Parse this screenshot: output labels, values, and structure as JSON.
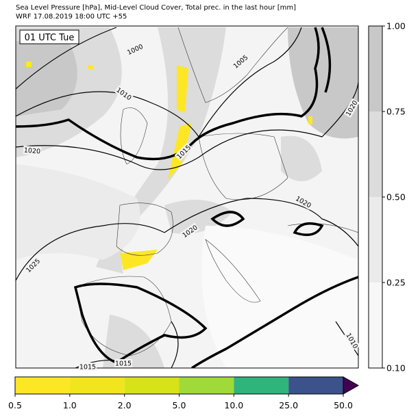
{
  "header": {
    "title": "Sea Level Pressure [hPa], Mid-Level Cloud Cover, Total prec. in the last hour [mm]",
    "subtitle": "WRF 17.08.2019 18:00 UTC +55"
  },
  "map": {
    "time_label": "01 UTC Tue",
    "contour_labels": [
      "1000",
      "1005",
      "1010",
      "1015",
      "1020",
      "1020",
      "1020",
      "1020",
      "1025",
      "1015",
      "1015",
      "1010"
    ]
  },
  "cloud_colorbar": {
    "ticks": [
      {
        "value": 0.1,
        "label": "0.10"
      },
      {
        "value": 0.25,
        "label": "0.25"
      },
      {
        "value": 0.5,
        "label": "0.50"
      },
      {
        "value": 0.75,
        "label": "0.75"
      },
      {
        "value": 1.0,
        "label": "1.00"
      }
    ],
    "colors": [
      "#f7f7f7",
      "#ebebeb",
      "#dcdcdc",
      "#c8c8c8"
    ]
  },
  "precip_colorbar": {
    "ticks": [
      0.5,
      {
        "value": 1.0,
        "label": "1.0"
      },
      {
        "value": 2.0,
        "label": "2.0"
      },
      {
        "value": 5.0,
        "label": "5.0"
      },
      {
        "value": 10.0,
        "label": "10.0"
      },
      {
        "value": 25.0,
        "label": "25.0"
      },
      {
        "value": 50.0,
        "label": "50.0"
      }
    ],
    "colors": [
      "#fde725",
      "#f1e51d",
      "#d8e219",
      "#a0da39",
      "#2fb47c",
      "#3b528b"
    ],
    "extend_color": "#440154"
  }
}
